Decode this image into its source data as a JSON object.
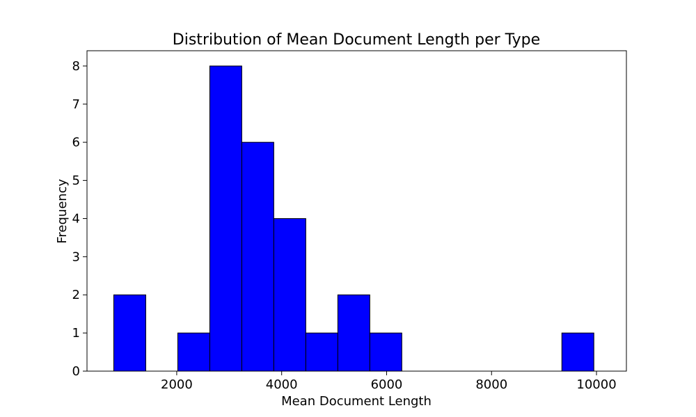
{
  "chart_data": {
    "type": "bar",
    "subtype": "histogram",
    "title": "Distribution of Mean Document Length per Type",
    "xlabel": "Mean Document Length",
    "ylabel": "Frequency",
    "bar_color": "#0000ff",
    "edge_color": "#000000",
    "xlim": [
      290,
      10570
    ],
    "ylim": [
      0,
      8.4
    ],
    "xticks": [
      2000,
      4000,
      6000,
      8000,
      10000
    ],
    "yticks": [
      0,
      1,
      2,
      3,
      4,
      5,
      6,
      7,
      8
    ],
    "bins": [
      {
        "start": 800,
        "end": 1410,
        "count": 2
      },
      {
        "start": 1410,
        "end": 2020,
        "count": 0
      },
      {
        "start": 2020,
        "end": 2630,
        "count": 1
      },
      {
        "start": 2630,
        "end": 3240,
        "count": 8
      },
      {
        "start": 3240,
        "end": 3850,
        "count": 6
      },
      {
        "start": 3850,
        "end": 4460,
        "count": 4
      },
      {
        "start": 4460,
        "end": 5070,
        "count": 1
      },
      {
        "start": 5070,
        "end": 5680,
        "count": 2
      },
      {
        "start": 5680,
        "end": 6290,
        "count": 1
      },
      {
        "start": 6290,
        "end": 6900,
        "count": 0
      },
      {
        "start": 6900,
        "end": 7510,
        "count": 0
      },
      {
        "start": 7510,
        "end": 8120,
        "count": 0
      },
      {
        "start": 8120,
        "end": 8730,
        "count": 0
      },
      {
        "start": 8730,
        "end": 9340,
        "count": 0
      },
      {
        "start": 9340,
        "end": 9950,
        "count": 1
      }
    ],
    "grid": false
  }
}
